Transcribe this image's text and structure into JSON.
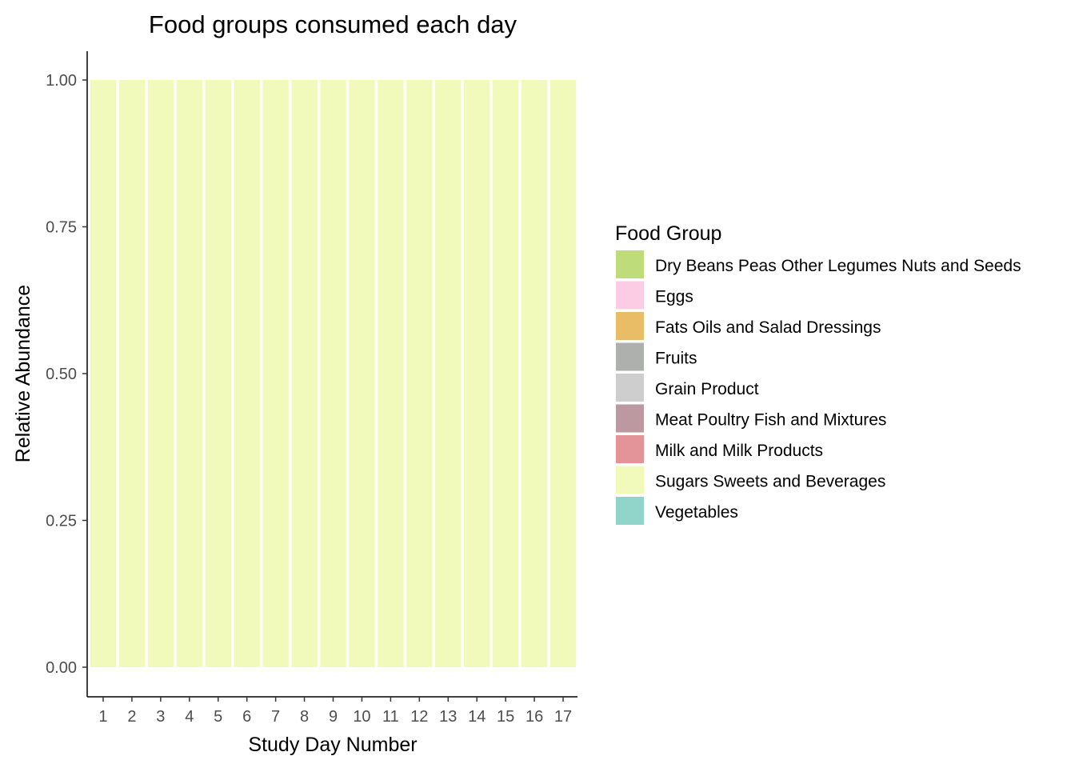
{
  "chart_data": {
    "type": "bar",
    "stacked": true,
    "title": "Food groups consumed each day",
    "xlabel": "Study Day Number",
    "ylabel": "Relative Abundance",
    "categories": [
      "1",
      "2",
      "3",
      "4",
      "5",
      "6",
      "7",
      "8",
      "9",
      "10",
      "11",
      "12",
      "13",
      "14",
      "15",
      "16",
      "17"
    ],
    "ylim": [
      0,
      1
    ],
    "yticks": [
      "0.00",
      "0.25",
      "0.50",
      "0.75",
      "1.00"
    ],
    "grid": false,
    "legend_position": "right",
    "legend_title": "Food Group",
    "series": [
      {
        "name": "Dry Beans Peas Other Legumes Nuts and Seeds",
        "color": "#bedc7a",
        "values": [
          0,
          0,
          0,
          0,
          0,
          0,
          0,
          0,
          0,
          0,
          0,
          0,
          0,
          0,
          0,
          0,
          0
        ]
      },
      {
        "name": "Eggs",
        "color": "#fccce4",
        "values": [
          0,
          0,
          0,
          0,
          0,
          0,
          0,
          0,
          0,
          0,
          0,
          0,
          0,
          0,
          0,
          0,
          0
        ]
      },
      {
        "name": "Fats Oils and Salad Dressings",
        "color": "#e8bd65",
        "values": [
          0,
          0,
          0,
          0,
          0,
          0,
          0,
          0,
          0,
          0,
          0,
          0,
          0,
          0,
          0,
          0,
          0
        ]
      },
      {
        "name": "Fruits",
        "color": "#adb0ac",
        "values": [
          0,
          0,
          0,
          0,
          0,
          0,
          0,
          0,
          0,
          0,
          0,
          0,
          0,
          0,
          0,
          0,
          0
        ]
      },
      {
        "name": "Grain Product",
        "color": "#cececf",
        "values": [
          0,
          0,
          0,
          0,
          0,
          0,
          0,
          0,
          0,
          0,
          0,
          0,
          0,
          0,
          0,
          0,
          0
        ]
      },
      {
        "name": "Meat Poultry Fish and Mixtures",
        "color": "#bc98a1",
        "values": [
          0,
          0,
          0,
          0,
          0,
          0,
          0,
          0,
          0,
          0,
          0,
          0,
          0,
          0,
          0,
          0,
          0
        ]
      },
      {
        "name": "Milk and Milk Products",
        "color": "#e29499",
        "values": [
          0,
          0,
          0,
          0,
          0,
          0,
          0,
          0,
          0,
          0,
          0,
          0,
          0,
          0,
          0,
          0,
          0
        ]
      },
      {
        "name": "Sugars Sweets and Beverages",
        "color": "#f1fabb",
        "values": [
          1,
          1,
          1,
          1,
          1,
          1,
          1,
          1,
          1,
          1,
          1,
          1,
          1,
          1,
          1,
          1,
          1
        ]
      },
      {
        "name": "Vegetables",
        "color": "#91d4ca",
        "values": [
          0,
          0,
          0,
          0,
          0,
          0,
          0,
          0,
          0,
          0,
          0,
          0,
          0,
          0,
          0,
          0,
          0
        ]
      }
    ]
  }
}
